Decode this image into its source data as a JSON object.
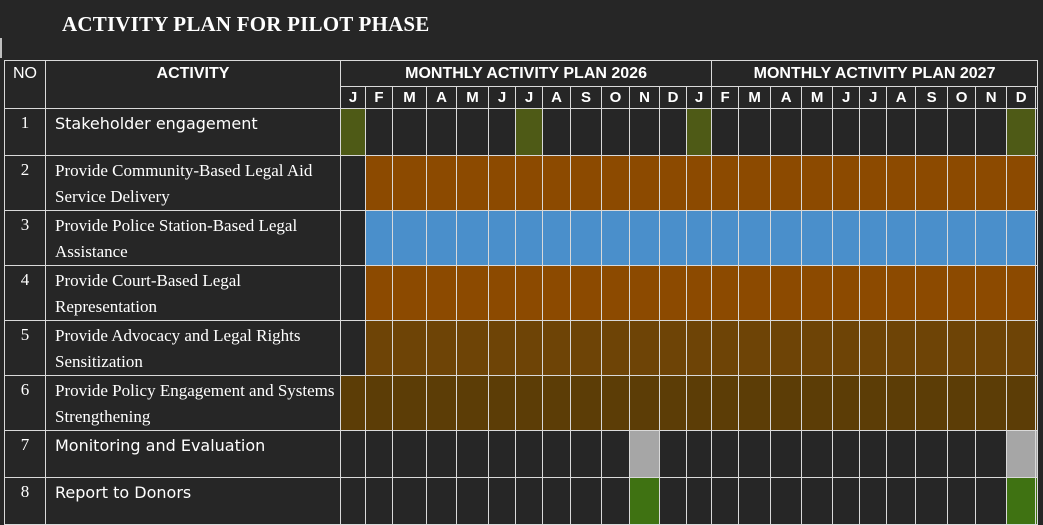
{
  "title": "ACTIVITY PLAN FOR PILOT PHASE",
  "headers": {
    "no": "NO",
    "activity": "ACTIVITY",
    "plan_2026": "MONTHLY ACTIVITY PLAN 2026",
    "plan_2027": "MONTHLY ACTIVITY PLAN 2027"
  },
  "months": [
    "J",
    "F",
    "M",
    "A",
    "M",
    "J",
    "J",
    "A",
    "S",
    "O",
    "N",
    "D"
  ],
  "colors": {
    "engagement": "#4e5a16",
    "community": "#8c4a00",
    "police": "#4a8fcb",
    "court": "#8c4a00",
    "advocacy": "#6e4406",
    "policy": "#5c3d06",
    "monitoring": "#a6a6a6",
    "report": "#3f7212"
  },
  "rows": [
    {
      "no": "1",
      "label": "Stakeholder engagement",
      "font": "sans",
      "color": "engagement",
      "active": [
        0,
        6,
        12,
        23
      ]
    },
    {
      "no": "2",
      "label": "Provide Community-Based Legal Aid Service Delivery",
      "font": "serif",
      "color": "community",
      "active": [
        1,
        2,
        3,
        4,
        5,
        6,
        7,
        8,
        9,
        10,
        11,
        12,
        13,
        14,
        15,
        16,
        17,
        18,
        19,
        20,
        21,
        22,
        23
      ]
    },
    {
      "no": "3",
      "label": "Provide Police Station-Based Legal Assistance",
      "font": "serif",
      "color": "police",
      "active": [
        1,
        2,
        3,
        4,
        5,
        6,
        7,
        8,
        9,
        10,
        11,
        12,
        13,
        14,
        15,
        16,
        17,
        18,
        19,
        20,
        21,
        22,
        23
      ]
    },
    {
      "no": "4",
      "label": "Provide Court-Based Legal Representation",
      "font": "serif",
      "color": "court",
      "active": [
        1,
        2,
        3,
        4,
        5,
        6,
        7,
        8,
        9,
        10,
        11,
        12,
        13,
        14,
        15,
        16,
        17,
        18,
        19,
        20,
        21,
        22,
        23
      ]
    },
    {
      "no": "5",
      "label": "Provide Advocacy and Legal Rights Sensitization",
      "font": "serif",
      "color": "advocacy",
      "active": [
        1,
        2,
        3,
        4,
        5,
        6,
        7,
        8,
        9,
        10,
        11,
        12,
        13,
        14,
        15,
        16,
        17,
        18,
        19,
        20,
        21,
        22,
        23
      ]
    },
    {
      "no": "6",
      "label": "Provide Policy Engagement and Systems Strengthening",
      "font": "serif",
      "color": "policy",
      "active": [
        0,
        1,
        2,
        3,
        4,
        5,
        6,
        7,
        8,
        9,
        10,
        11,
        12,
        13,
        14,
        15,
        16,
        17,
        18,
        19,
        20,
        21,
        22,
        23,
        24
      ]
    },
    {
      "no": "7",
      "label": "Monitoring and Evaluation",
      "font": "sans",
      "color": "monitoring",
      "active": [
        10,
        23,
        24
      ]
    },
    {
      "no": "8",
      "label": "Report to Donors",
      "font": "sans",
      "color": "report",
      "active": [
        10,
        23,
        24
      ]
    }
  ]
}
